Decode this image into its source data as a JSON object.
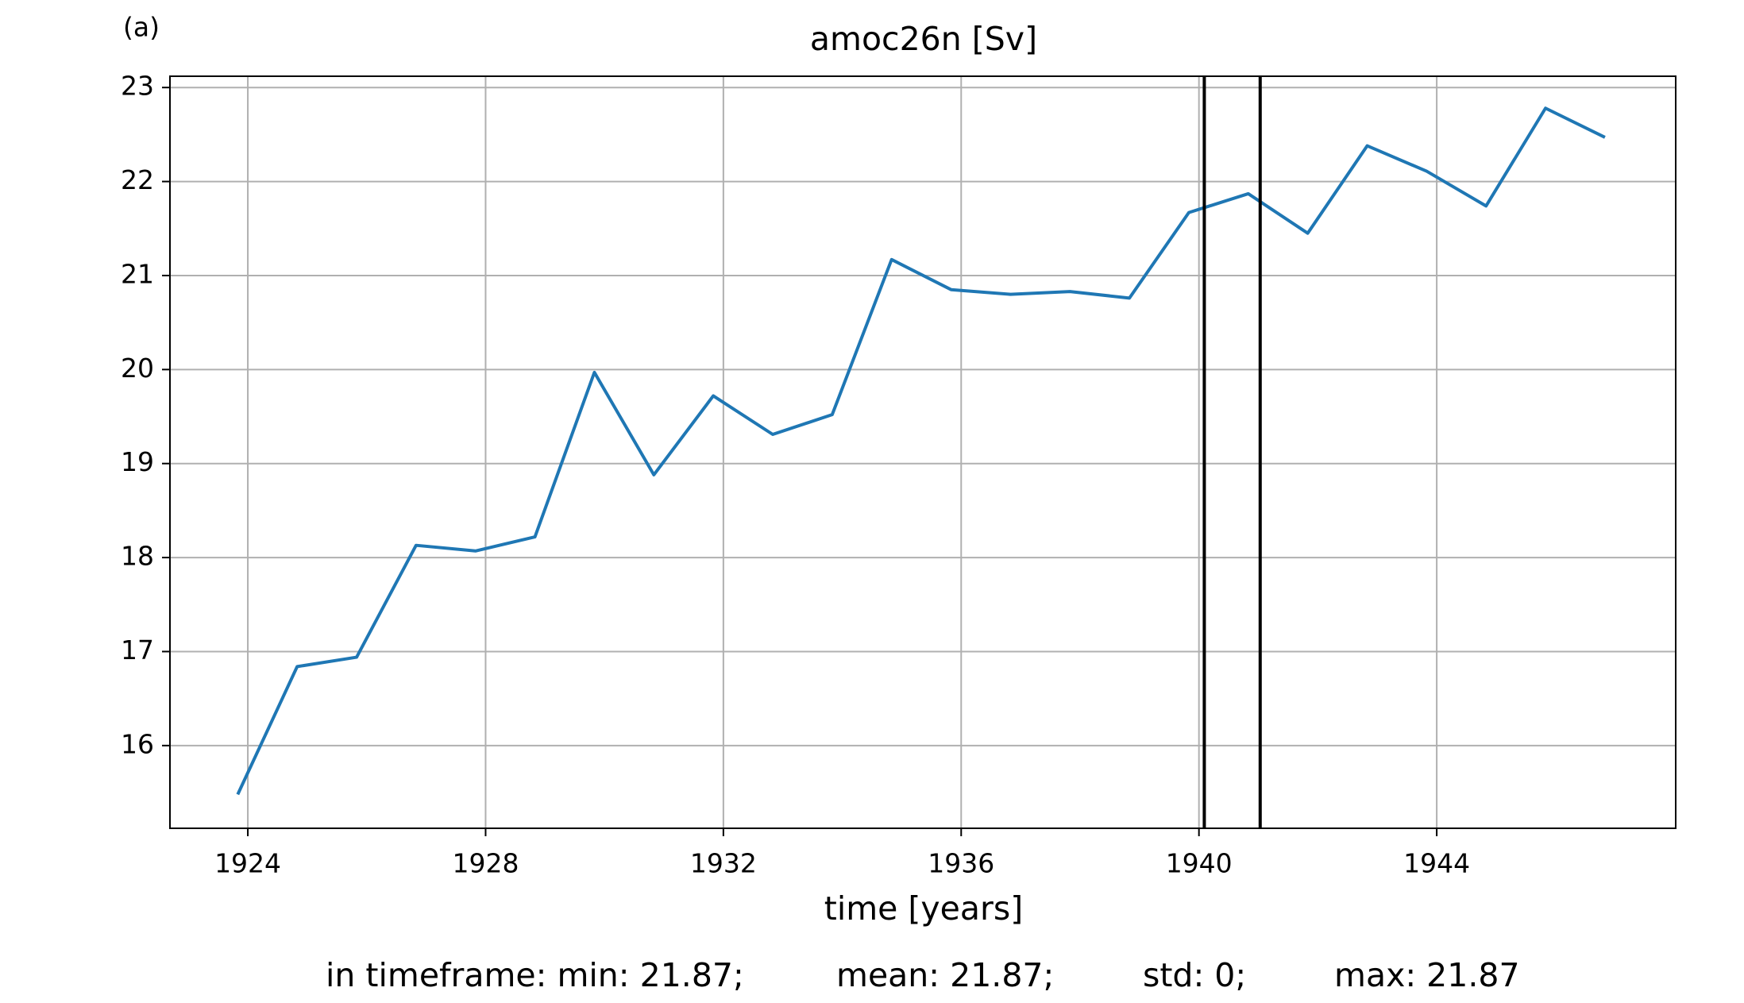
{
  "chart_data": {
    "type": "line",
    "panel_label": "(a)",
    "title": "amoc26n [Sv]",
    "x_label": "time [years]",
    "x": [
      1923.83,
      1924.83,
      1925.83,
      1926.83,
      1927.83,
      1928.83,
      1929.83,
      1930.83,
      1931.83,
      1932.83,
      1933.83,
      1934.83,
      1935.83,
      1936.83,
      1937.83,
      1938.83,
      1939.83,
      1940.83,
      1941.83,
      1942.83,
      1943.83,
      1944.83,
      1945.83,
      1946.83
    ],
    "series": [
      {
        "name": "amoc26n",
        "color": "#1f77b4",
        "values": [
          15.48,
          16.84,
          16.94,
          18.13,
          18.07,
          18.22,
          19.97,
          18.88,
          19.72,
          19.31,
          19.52,
          21.17,
          20.85,
          20.8,
          20.83,
          20.76,
          21.67,
          21.87,
          21.45,
          22.38,
          22.11,
          21.74,
          22.78,
          22.47
        ]
      }
    ],
    "vlines": [
      1940.09,
      1941.03
    ],
    "vline_color": "#000000",
    "xlim": [
      1922.69,
      1948.02
    ],
    "xticks": [
      1924,
      1928,
      1932,
      1936,
      1940,
      1944
    ],
    "ylim": [
      15.12,
      23.12
    ],
    "yticks": [
      16,
      17,
      18,
      19,
      20,
      21,
      22,
      23
    ],
    "grid": true,
    "footer": [
      "in timeframe: min: 21.87;",
      "mean: 21.87;",
      "std: 0;",
      "max: 21.87"
    ]
  }
}
